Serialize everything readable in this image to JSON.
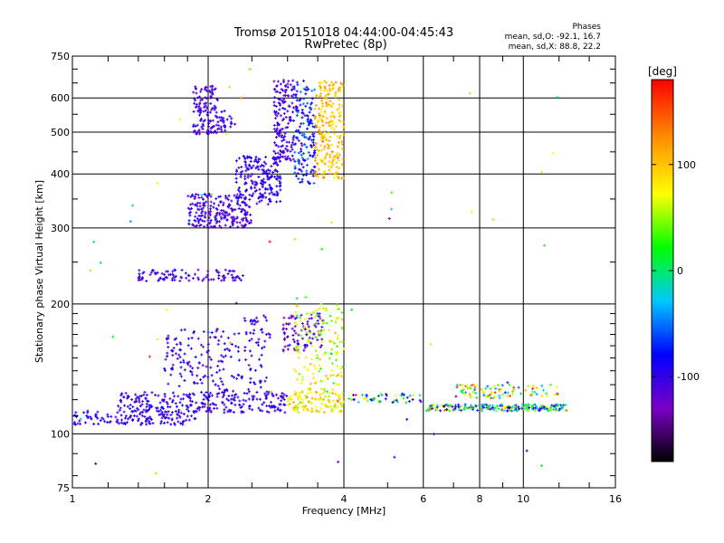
{
  "chart_data": {
    "type": "scatter",
    "title": "Tromsø 20151018 04:44:00-04:45:43",
    "subtitle": "RwPretec (8p)",
    "xlabel": "Frequency [MHz]",
    "ylabel": "Stationary phase Virtual Height [km]",
    "x_scale": "log",
    "y_scale": "log",
    "xlim": [
      1,
      16
    ],
    "ylim": [
      75,
      750
    ],
    "x_ticks": [
      1,
      2,
      4,
      6,
      8,
      10,
      16
    ],
    "y_ticks": [
      75,
      100,
      200,
      300,
      400,
      500,
      600,
      750
    ],
    "grid": true,
    "stats": {
      "heading": "Phases",
      "line_o": "mean, sd,O: -92.1, 16.7",
      "line_x": "mean, sd,X:  88.8, 22.2"
    },
    "colorbar": {
      "label": "[deg]",
      "range": [
        -180,
        180
      ],
      "ticks": [
        100,
        0,
        -100
      ]
    },
    "colors": [
      "#000000",
      "#7b00c8",
      "#0000ff",
      "#00c8ff",
      "#00ff00",
      "#ffff00",
      "#ff8c00",
      "#ff0000"
    ],
    "clusters": [
      {
        "x": [
          1.0,
          1.9
        ],
        "y": [
          105,
          113
        ],
        "n": 140,
        "phase": -95,
        "sd": 12
      },
      {
        "x": [
          1.25,
          3.0
        ],
        "y": [
          112,
          125
        ],
        "n": 240,
        "phase": -100,
        "sd": 12
      },
      {
        "x": [
          1.6,
          2.7
        ],
        "y": [
          118,
          175
        ],
        "n": 200,
        "phase": -100,
        "sd": 14
      },
      {
        "x": [
          2.4,
          2.75
        ],
        "y": [
          160,
          190
        ],
        "n": 30,
        "phase": -100,
        "sd": 10
      },
      {
        "x": [
          2.9,
          3.6
        ],
        "y": [
          155,
          190
        ],
        "n": 90,
        "phase": -115,
        "sd": 12
      },
      {
        "x": [
          3.0,
          4.0
        ],
        "y": [
          112,
          125
        ],
        "n": 120,
        "phase": 90,
        "sd": 20
      },
      {
        "x": [
          3.1,
          4.0
        ],
        "y": [
          125,
          200
        ],
        "n": 140,
        "phase": 70,
        "sd": 25
      },
      {
        "x": [
          1.4,
          2.4
        ],
        "y": [
          226,
          240
        ],
        "n": 100,
        "phase": -105,
        "sd": 10
      },
      {
        "x": [
          1.8,
          2.5
        ],
        "y": [
          300,
          360
        ],
        "n": 220,
        "phase": -105,
        "sd": 12
      },
      {
        "x": [
          2.3,
          2.9
        ],
        "y": [
          340,
          440
        ],
        "n": 200,
        "phase": -95,
        "sd": 12
      },
      {
        "x": [
          2.8,
          3.1
        ],
        "y": [
          430,
          660
        ],
        "n": 160,
        "phase": -105,
        "sd": 12
      },
      {
        "x": [
          3.1,
          3.45
        ],
        "y": [
          380,
          660
        ],
        "n": 160,
        "phase": -75,
        "sd": 22
      },
      {
        "x": [
          3.45,
          4.0
        ],
        "y": [
          390,
          660
        ],
        "n": 230,
        "phase": 105,
        "sd": 18
      },
      {
        "x": [
          1.85,
          2.1
        ],
        "y": [
          495,
          640
        ],
        "n": 120,
        "phase": -105,
        "sd": 10
      },
      {
        "x": [
          2.1,
          2.3
        ],
        "y": [
          500,
          560
        ],
        "n": 30,
        "phase": -100,
        "sd": 10
      },
      {
        "x": [
          6.1,
          12.5
        ],
        "y": [
          113,
          117
        ],
        "n": 220,
        "phase": -10,
        "sd": 70
      },
      {
        "x": [
          7.0,
          12.0
        ],
        "y": [
          121,
          130
        ],
        "n": 90,
        "phase": 60,
        "sd": 60
      },
      {
        "x": [
          4.0,
          6.0
        ],
        "y": [
          118,
          124
        ],
        "n": 50,
        "phase": -40,
        "sd": 90
      },
      {
        "x": [
          1.0,
          12.0
        ],
        "y": [
          78,
          700
        ],
        "n": 50,
        "phase": 40,
        "sd": 100
      }
    ]
  }
}
